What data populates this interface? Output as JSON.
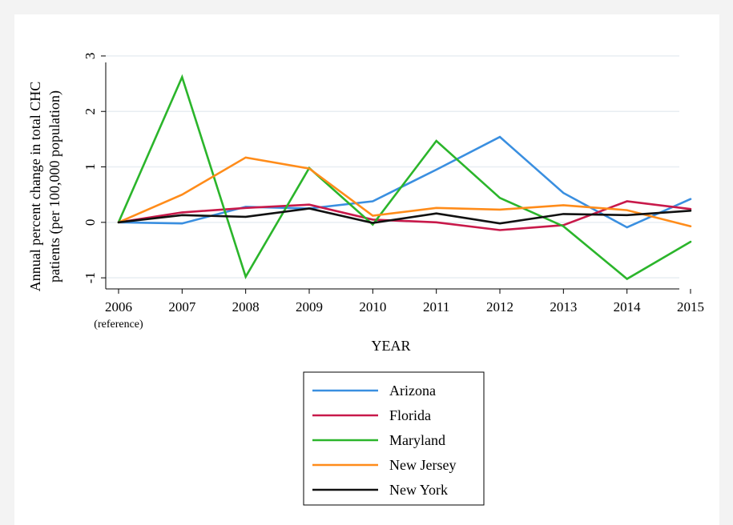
{
  "chart_data": {
    "type": "line",
    "title": "",
    "xlabel": "YEAR",
    "ylabel_line1": "Annual percent change in total CHC",
    "ylabel_line2": "patients (per 100,000 population)",
    "x": [
      2006,
      2007,
      2008,
      2009,
      2010,
      2011,
      2012,
      2013,
      2014,
      2015
    ],
    "x_tick_labels": [
      "2006",
      "2007",
      "2008",
      "2009",
      "2010",
      "2011",
      "2012",
      "2013",
      "2014",
      "2015"
    ],
    "x_first_sublabel": "(reference)",
    "y_ticks": [
      -1,
      0,
      1,
      2,
      3
    ],
    "y_tick_labels": [
      "-1",
      "0",
      "1",
      "2",
      "3"
    ],
    "ylim": [
      -1.2,
      3.1
    ],
    "grid": true,
    "legend_position": "bottom-center",
    "series": [
      {
        "name": "Arizona",
        "color": "#3a8fe0",
        "values": [
          0,
          -0.02,
          0.28,
          0.25,
          0.38,
          0.95,
          1.54,
          0.53,
          -0.09,
          0.42
        ]
      },
      {
        "name": "Florida",
        "color": "#c8194a",
        "values": [
          0,
          0.18,
          0.26,
          0.32,
          0.05,
          0.0,
          -0.14,
          -0.05,
          0.38,
          0.24
        ]
      },
      {
        "name": "Maryland",
        "color": "#2bb52b",
        "values": [
          0,
          2.62,
          -0.98,
          0.98,
          -0.04,
          1.47,
          0.44,
          -0.07,
          -1.02,
          -0.35
        ]
      },
      {
        "name": "New Jersey",
        "color": "#ff8c1a",
        "values": [
          0,
          0.5,
          1.17,
          0.97,
          0.12,
          0.26,
          0.23,
          0.31,
          0.22,
          -0.07
        ]
      },
      {
        "name": "New York",
        "color": "#111111",
        "values": [
          0,
          0.13,
          0.1,
          0.25,
          -0.01,
          0.16,
          -0.02,
          0.15,
          0.13,
          0.21
        ]
      }
    ]
  }
}
